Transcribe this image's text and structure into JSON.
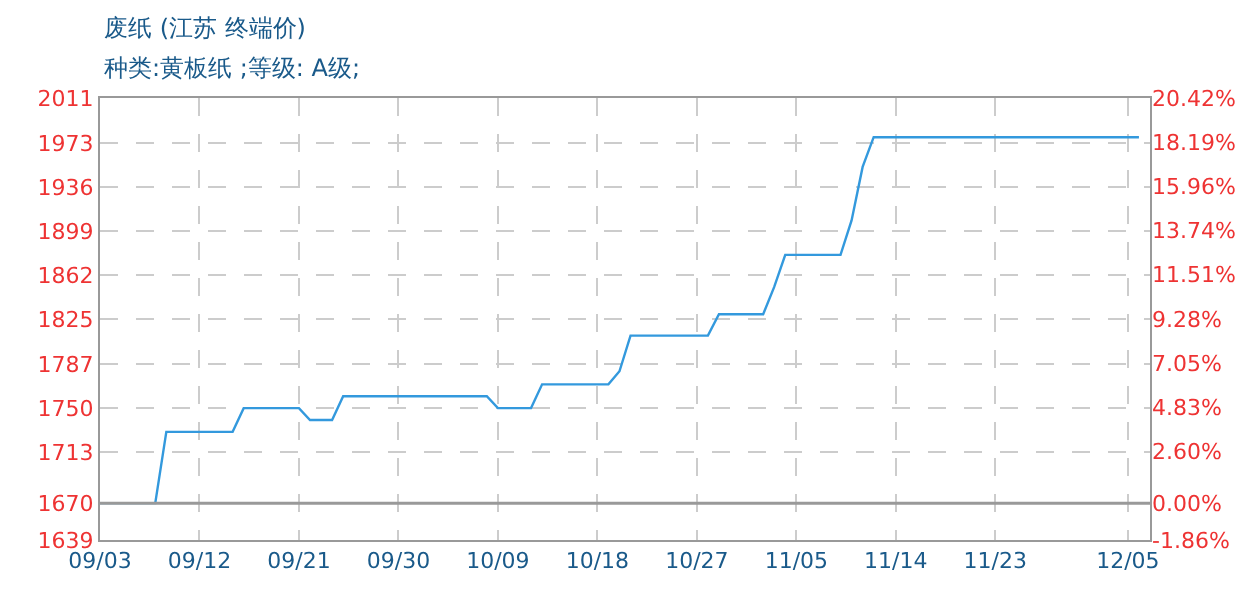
{
  "chart_data": {
    "type": "line",
    "title": "废纸 (江苏 终端价)",
    "subtitle": "种类:黄板纸 ;等级: A级;",
    "x": [
      "--09-03",
      "--09-08",
      "--09-09",
      "--09-15",
      "--09-16",
      "--09-21",
      "--09-22",
      "--09-24",
      "--09-25",
      "--10-08",
      "--10-09",
      "--10-12",
      "--10-13",
      "--10-19",
      "--10-20",
      "--10-21",
      "--10-28",
      "--10-29",
      "--11-02",
      "--11-03",
      "--11-04",
      "--11-09",
      "--11-10",
      "--11-11",
      "--11-12",
      "--12-06"
    ],
    "values": [
      1670,
      1670,
      1730,
      1730,
      1750,
      1750,
      1740,
      1740,
      1760,
      1760,
      1750,
      1750,
      1770,
      1770,
      1781,
      1811,
      1811,
      1829,
      1829,
      1852,
      1879,
      1879,
      1908,
      1953,
      1978,
      1978
    ],
    "color": "#3399dd",
    "xlim": [
      "--09-03",
      "--12-07"
    ],
    "xticks": [
      {
        "value": "--09-03",
        "label": "09/03"
      },
      {
        "value": "--09-12",
        "label": "09/12"
      },
      {
        "value": "--09-21",
        "label": "09/21"
      },
      {
        "value": "--09-30",
        "label": "09/30"
      },
      {
        "value": "--10-09",
        "label": "10/09"
      },
      {
        "value": "--10-18",
        "label": "10/18"
      },
      {
        "value": "--10-27",
        "label": "10/27"
      },
      {
        "value": "--11-05",
        "label": "11/05"
      },
      {
        "value": "--11-14",
        "label": "11/14"
      },
      {
        "value": "--11-23",
        "label": "11/23"
      },
      {
        "value": "--12-05",
        "label": "12/05"
      }
    ],
    "ylim": [
      1639,
      2011
    ],
    "yticks": [
      1639,
      1670,
      1713,
      1750,
      1787,
      1825,
      1862,
      1899,
      1936,
      1973,
      2011
    ],
    "y2lim": [
      -1.86,
      20.42
    ],
    "y2ticks": [
      {
        "value": -1.86,
        "label": "-1.86%"
      },
      {
        "value": 0,
        "label": "0.00%"
      },
      {
        "value": 2.6,
        "label": "2.60%"
      },
      {
        "value": 4.83,
        "label": "4.83%"
      },
      {
        "value": 7.05,
        "label": "7.05%"
      },
      {
        "value": 9.28,
        "label": "9.28%"
      },
      {
        "value": 11.51,
        "label": "11.51%"
      },
      {
        "value": 13.74,
        "label": "13.74%"
      },
      {
        "value": 15.96,
        "label": "15.96%"
      },
      {
        "value": 18.19,
        "label": "18.19%"
      },
      {
        "value": 20.42,
        "label": "20.42%"
      }
    ],
    "ref_lines": [
      {
        "axis": "y",
        "value": 1670,
        "color": "#999999"
      }
    ],
    "grid": true
  }
}
